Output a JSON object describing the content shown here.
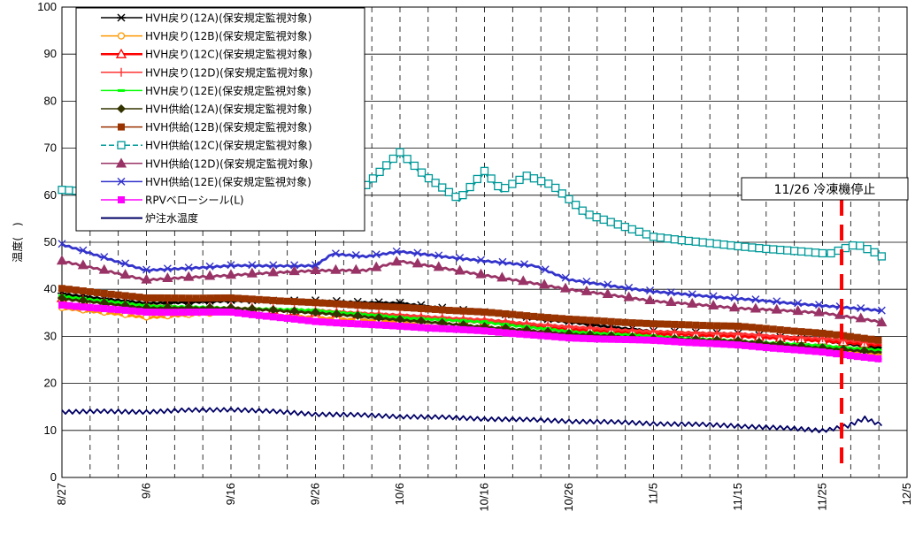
{
  "chart_data": {
    "type": "line",
    "title": "",
    "xlabel": "",
    "ylabel": "温度(　)",
    "x_start": "8/27",
    "x_end": "12/5",
    "x_ticks": [
      "8/27",
      "9/6",
      "9/16",
      "9/26",
      "10/6",
      "10/16",
      "10/26",
      "11/5",
      "11/15",
      "11/25",
      "12/5"
    ],
    "ylim": [
      0,
      100
    ],
    "y_ticks": [
      0,
      10,
      20,
      30,
      40,
      50,
      60,
      70,
      80,
      90,
      100
    ],
    "grid": {
      "horizontal": "solid",
      "vertical": "dashed"
    },
    "legend": "top-left",
    "annotation": {
      "text": "11/26 冷凍機停止",
      "date": "11/26",
      "color": "#ff0000"
    },
    "series": [
      {
        "name": "HVH戻り(12A)(保安規定監視対象)",
        "color": "#000000",
        "marker": "asterisk",
        "points": [
          [
            "8/27",
            39
          ],
          [
            "9/6",
            37
          ],
          [
            "9/16",
            37.5
          ],
          [
            "9/26",
            37.5
          ],
          [
            "10/6",
            37
          ],
          [
            "10/16",
            35
          ],
          [
            "10/26",
            33
          ],
          [
            "11/5",
            31
          ],
          [
            "11/15",
            30.5
          ],
          [
            "11/25",
            29
          ],
          [
            "12/2",
            27.5
          ]
        ]
      },
      {
        "name": "HVH戻り(12B)(保安規定監視対象)",
        "color": "#ff9900",
        "marker": "circle",
        "points": [
          [
            "8/27",
            36
          ],
          [
            "9/6",
            34
          ],
          [
            "9/16",
            35
          ],
          [
            "9/26",
            34
          ],
          [
            "10/6",
            33
          ],
          [
            "10/16",
            31
          ],
          [
            "10/26",
            30
          ],
          [
            "11/5",
            29
          ],
          [
            "11/15",
            28.5
          ],
          [
            "11/25",
            27
          ],
          [
            "12/2",
            26
          ]
        ]
      },
      {
        "name": "HVH戻り(12C)(保安規定監視対象)",
        "color": "#ff0000",
        "marker": "triangle",
        "points": [
          [
            "8/27",
            38
          ],
          [
            "9/6",
            36
          ],
          [
            "9/16",
            36
          ],
          [
            "9/26",
            35
          ],
          [
            "10/6",
            34
          ],
          [
            "10/16",
            33
          ],
          [
            "10/26",
            31.5
          ],
          [
            "11/5",
            30.5
          ],
          [
            "11/15",
            30
          ],
          [
            "11/25",
            29
          ],
          [
            "12/2",
            28
          ]
        ]
      },
      {
        "name": "HVH戻り(12D)(保安規定監視対象)",
        "color": "#ff3333",
        "marker": "plus",
        "points": [
          [
            "8/27",
            38
          ],
          [
            "9/6",
            36.5
          ],
          [
            "9/16",
            36
          ],
          [
            "9/26",
            35.5
          ],
          [
            "10/6",
            34.5
          ],
          [
            "10/16",
            33.5
          ],
          [
            "10/26",
            32
          ],
          [
            "11/5",
            31
          ],
          [
            "11/15",
            30.5
          ],
          [
            "11/25",
            29.5
          ],
          [
            "12/2",
            28.5
          ]
        ]
      },
      {
        "name": "HVH戻り(12E)(保安規定監視対象)",
        "color": "#00ff00",
        "marker": "dash",
        "points": [
          [
            "8/27",
            38.5
          ],
          [
            "9/6",
            36.5
          ],
          [
            "9/16",
            36
          ],
          [
            "9/26",
            35.5
          ],
          [
            "10/6",
            34
          ],
          [
            "10/16",
            33
          ],
          [
            "10/26",
            31
          ],
          [
            "11/5",
            30
          ],
          [
            "11/15",
            29
          ],
          [
            "11/25",
            28
          ],
          [
            "12/2",
            27
          ]
        ]
      },
      {
        "name": "HVH供給(12A)(保安規定監視対象)",
        "color": "#333300",
        "marker": "diamond",
        "points": [
          [
            "8/27",
            38
          ],
          [
            "9/6",
            36
          ],
          [
            "9/16",
            36
          ],
          [
            "9/26",
            35
          ],
          [
            "10/6",
            33.5
          ],
          [
            "10/16",
            32
          ],
          [
            "10/26",
            30.5
          ],
          [
            "11/5",
            29.5
          ],
          [
            "11/15",
            29
          ],
          [
            "11/25",
            27.5
          ],
          [
            "12/2",
            26.5
          ]
        ]
      },
      {
        "name": "HVH供給(12B)(保安規定監視対象)",
        "color": "#993300",
        "marker": "square",
        "points": [
          [
            "8/27",
            40
          ],
          [
            "9/6",
            38
          ],
          [
            "9/16",
            38
          ],
          [
            "9/26",
            37
          ],
          [
            "10/6",
            36
          ],
          [
            "10/16",
            35
          ],
          [
            "10/26",
            33.5
          ],
          [
            "11/5",
            32.5
          ],
          [
            "11/15",
            32
          ],
          [
            "11/25",
            30.5
          ],
          [
            "12/2",
            29
          ]
        ]
      },
      {
        "name": "HVH供給(12C)(保安規定監視対象)",
        "color": "#009999",
        "marker": "open-square",
        "points": [
          [
            "8/27",
            61
          ],
          [
            "9/6",
            60
          ],
          [
            "9/16",
            61
          ],
          [
            "9/26",
            61
          ],
          [
            "10/2",
            62
          ],
          [
            "10/6",
            69
          ],
          [
            "10/9",
            64
          ],
          [
            "10/13",
            59
          ],
          [
            "10/16",
            65
          ],
          [
            "10/18",
            61
          ],
          [
            "10/21",
            64
          ],
          [
            "10/24",
            62
          ],
          [
            "10/28",
            56
          ],
          [
            "11/5",
            51
          ],
          [
            "11/15",
            49
          ],
          [
            "11/25",
            47.5
          ],
          [
            "11/26",
            47.5
          ],
          [
            "11/29",
            49.5
          ],
          [
            "12/2",
            47
          ]
        ]
      },
      {
        "name": "HVH供給(12D)(保安規定監視対象)",
        "color": "#993366",
        "marker": "triangle",
        "points": [
          [
            "8/27",
            46
          ],
          [
            "9/6",
            42
          ],
          [
            "9/16",
            43
          ],
          [
            "9/26",
            44
          ],
          [
            "9/28",
            44
          ],
          [
            "10/2",
            44
          ],
          [
            "10/6",
            46
          ],
          [
            "10/16",
            43
          ],
          [
            "10/26",
            40
          ],
          [
            "11/5",
            37.5
          ],
          [
            "11/15",
            36
          ],
          [
            "11/25",
            35
          ],
          [
            "12/2",
            33
          ]
        ]
      },
      {
        "name": "HVH供給(12E)(保安規定監視対象)",
        "color": "#3333cc",
        "marker": "x",
        "points": [
          [
            "8/27",
            49.5
          ],
          [
            "9/6",
            44
          ],
          [
            "9/16",
            45
          ],
          [
            "9/26",
            45
          ],
          [
            "9/28",
            47.5
          ],
          [
            "10/2",
            47
          ],
          [
            "10/6",
            48
          ],
          [
            "10/16",
            46
          ],
          [
            "10/22",
            45
          ],
          [
            "10/26",
            42
          ],
          [
            "11/5",
            39.5
          ],
          [
            "11/15",
            38
          ],
          [
            "11/25",
            36.5
          ],
          [
            "12/2",
            35.5
          ]
        ]
      },
      {
        "name": "RPVベローシール(L)",
        "color": "#ff00ff",
        "marker": "square",
        "points": [
          [
            "8/27",
            36.5
          ],
          [
            "9/6",
            35
          ],
          [
            "9/16",
            35
          ],
          [
            "9/26",
            33
          ],
          [
            "10/6",
            32
          ],
          [
            "10/16",
            31
          ],
          [
            "10/26",
            29.5
          ],
          [
            "11/5",
            29
          ],
          [
            "11/15",
            28
          ],
          [
            "11/25",
            26.5
          ],
          [
            "12/2",
            25
          ]
        ]
      },
      {
        "name": "炉注水温度",
        "color": "#000066",
        "marker": "none",
        "points": [
          [
            "8/27",
            14
          ],
          [
            "9/6",
            14
          ],
          [
            "9/16",
            14.5
          ],
          [
            "9/26",
            13.5
          ],
          [
            "10/6",
            13
          ],
          [
            "10/16",
            12.5
          ],
          [
            "10/26",
            12
          ],
          [
            "11/5",
            11.5
          ],
          [
            "11/15",
            11
          ],
          [
            "11/25",
            10
          ],
          [
            "11/28",
            11
          ],
          [
            "11/30",
            12.5
          ],
          [
            "12/2",
            11
          ]
        ]
      }
    ]
  }
}
